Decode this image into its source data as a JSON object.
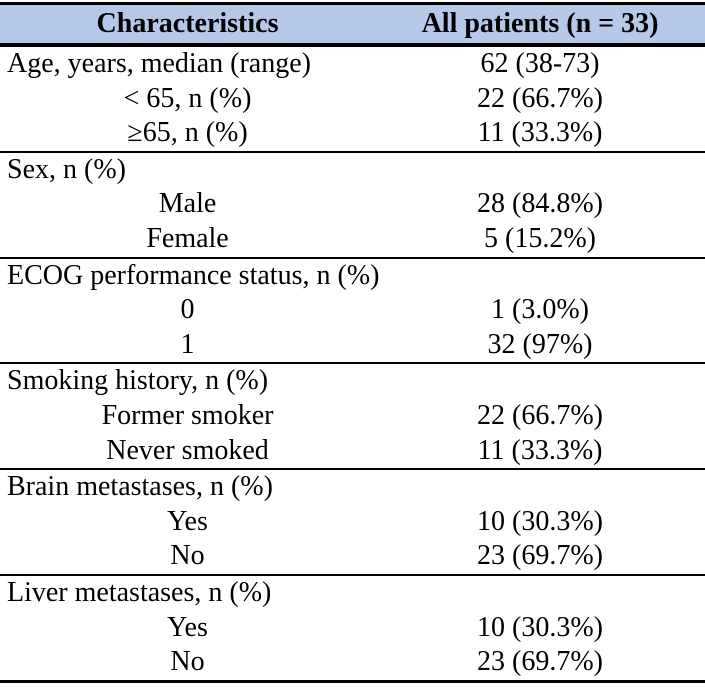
{
  "colors": {
    "header_background": "#b5c8e7",
    "border": "#000000",
    "text": "#000000"
  },
  "table": {
    "header": {
      "characteristics_label": "Characteristics",
      "all_patients_label": "All patients (n = 33)"
    },
    "sections": [
      {
        "rows": [
          {
            "label": "Age, years, median (range)",
            "value": "62 (38-73)",
            "indent": false
          },
          {
            "label": "< 65, n (%)",
            "value": "22 (66.7%)",
            "indent": true
          },
          {
            "label": "≥65, n (%)",
            "value": "11 (33.3%)",
            "indent": true
          }
        ]
      },
      {
        "rows": [
          {
            "label": "Sex, n (%)",
            "value": "",
            "indent": false
          },
          {
            "label": "Male",
            "value": "28 (84.8%)",
            "indent": true
          },
          {
            "label": "Female",
            "value": "5 (15.2%)",
            "indent": true
          }
        ]
      },
      {
        "rows": [
          {
            "label": "ECOG performance status, n (%)",
            "value": "",
            "indent": false
          },
          {
            "label": "0",
            "value": "1 (3.0%)",
            "indent": true
          },
          {
            "label": "1",
            "value": "32 (97%)",
            "indent": true
          }
        ]
      },
      {
        "rows": [
          {
            "label": "Smoking history, n (%)",
            "value": "",
            "indent": false
          },
          {
            "label": "Former smoker",
            "value": "22 (66.7%)",
            "indent": true
          },
          {
            "label": "Never smoked",
            "value": "11 (33.3%)",
            "indent": true
          }
        ]
      },
      {
        "rows": [
          {
            "label": "Brain metastases, n (%)",
            "value": "",
            "indent": false
          },
          {
            "label": "Yes",
            "value": "10 (30.3%)",
            "indent": true
          },
          {
            "label": "No",
            "value": "23 (69.7%)",
            "indent": true
          }
        ]
      },
      {
        "rows": [
          {
            "label": "Liver metastases, n (%)",
            "value": "",
            "indent": false
          },
          {
            "label": "Yes",
            "value": "10 (30.3%)",
            "indent": true
          },
          {
            "label": "No",
            "value": "23 (69.7%)",
            "indent": true
          }
        ]
      }
    ]
  }
}
